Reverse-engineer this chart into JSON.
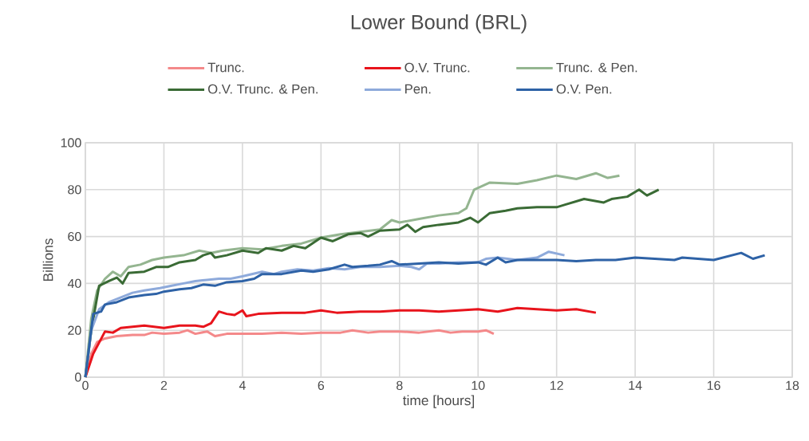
{
  "chart_data": {
    "type": "line",
    "title": "Lower Bound (BRL)",
    "xlabel": "time [hours]",
    "ylabel": "Billions",
    "xlim": [
      0,
      18
    ],
    "xticks": [
      0,
      2,
      4,
      6,
      8,
      10,
      12,
      14,
      16,
      18
    ],
    "ylim": [
      0,
      100
    ],
    "yticks": [
      0,
      20,
      40,
      60,
      80,
      100
    ],
    "grid": true,
    "legend": "top",
    "marker": "none",
    "line_style": "solid",
    "series": [
      {
        "name": "Trunc.",
        "color": "#f4898a",
        "x": [
          0,
          0.15,
          0.3,
          0.5,
          0.8,
          1.2,
          1.5,
          1.7,
          2,
          2.4,
          2.6,
          2.8,
          3.1,
          3.3,
          3.6,
          4,
          4.5,
          5,
          5.5,
          6,
          6.5,
          6.8,
          7.2,
          7.5,
          8,
          8.5,
          9,
          9.3,
          9.6,
          10,
          10.2,
          10.4
        ],
        "values": [
          0,
          10,
          15,
          16.5,
          17.5,
          18,
          18,
          19,
          18.5,
          19,
          20,
          18.5,
          19.5,
          17.5,
          18.5,
          18.5,
          18.5,
          19,
          18.5,
          19,
          19,
          20,
          19,
          19.5,
          19.5,
          19,
          20,
          19,
          19.5,
          19.5,
          20,
          18.5
        ]
      },
      {
        "name": "O.V. Trunc.",
        "color": "#e8141c",
        "x": [
          0,
          0.2,
          0.5,
          0.7,
          0.9,
          1.2,
          1.5,
          2,
          2.4,
          2.8,
          3.0,
          3.2,
          3.4,
          3.6,
          3.8,
          4,
          4.1,
          4.4,
          5,
          5.6,
          6,
          6.4,
          7,
          7.5,
          8,
          8.5,
          9,
          9.5,
          10,
          10.5,
          11,
          11.5,
          12,
          12.5,
          13
        ],
        "values": [
          0,
          10,
          19.5,
          19,
          21,
          21.5,
          22,
          21,
          22,
          22,
          21.5,
          23,
          28,
          27,
          26.5,
          28.5,
          26,
          27,
          27.5,
          27.5,
          28.5,
          27.5,
          28,
          28,
          28.5,
          28.5,
          28,
          28.5,
          29,
          28,
          29.5,
          29,
          28.5,
          29,
          27.5
        ]
      },
      {
        "name": "Trunc. & Pen.",
        "color": "#94b590",
        "x": [
          0,
          0.15,
          0.3,
          0.5,
          0.7,
          0.9,
          1.1,
          1.4,
          1.7,
          2,
          2.5,
          2.9,
          3.2,
          3.5,
          4,
          4.5,
          5,
          5.5,
          6,
          6.5,
          7,
          7.5,
          7.8,
          8,
          8.5,
          9,
          9.5,
          9.7,
          9.9,
          10.3,
          11,
          11.5,
          12,
          12.5,
          13,
          13.3,
          13.6
        ],
        "values": [
          0,
          25,
          37,
          42,
          45,
          43,
          47,
          48,
          50,
          51,
          52,
          54,
          53,
          54,
          55,
          54.5,
          56,
          57,
          59.5,
          61,
          62,
          63,
          67,
          66,
          67.5,
          69,
          70,
          72,
          80,
          83,
          82.5,
          84,
          86,
          84.5,
          87,
          85,
          86
        ]
      },
      {
        "name": "O.V. Trunc. & Pen.",
        "color": "#3a6b35",
        "x": [
          0,
          0.15,
          0.35,
          0.6,
          0.8,
          0.95,
          1.1,
          1.5,
          1.8,
          2.1,
          2.4,
          2.8,
          3.0,
          3.2,
          3.3,
          3.6,
          4,
          4.4,
          4.6,
          5,
          5.3,
          5.6,
          6,
          6.3,
          6.7,
          7,
          7.2,
          7.5,
          8,
          8.2,
          8.4,
          8.6,
          9,
          9.5,
          9.8,
          10,
          10.3,
          10.7,
          11,
          11.5,
          12,
          12.2,
          12.7,
          13.2,
          13.4,
          13.8,
          14.1,
          14.3,
          14.6
        ],
        "values": [
          0,
          20,
          39,
          41,
          42.5,
          40,
          44.5,
          45,
          47,
          47,
          49,
          50,
          52,
          53,
          51,
          52,
          54,
          53,
          55,
          54,
          56,
          55,
          59.5,
          58,
          61,
          61.5,
          60,
          62.5,
          63,
          65,
          62,
          64,
          65,
          66,
          68,
          66,
          70,
          71,
          72,
          72.5,
          72.5,
          73.5,
          76,
          74.5,
          76,
          77,
          80,
          77.5,
          80
        ]
      },
      {
        "name": "Pen.",
        "color": "#8eaadb",
        "x": [
          0,
          0.15,
          0.35,
          0.6,
          0.9,
          1.2,
          1.5,
          1.9,
          2.2,
          2.5,
          2.8,
          3.1,
          3.4,
          3.7,
          4,
          4.5,
          4.8,
          5,
          5.4,
          5.8,
          6.2,
          6.6,
          7,
          7.5,
          8,
          8.3,
          8.5,
          8.7,
          9,
          9.5,
          10,
          10.2,
          10.5,
          11,
          11.5,
          11.8,
          12.2
        ],
        "values": [
          0,
          20,
          29,
          32,
          34,
          36,
          37,
          38,
          39,
          40,
          41,
          41.5,
          42,
          42,
          43,
          45,
          44,
          45,
          46,
          45.5,
          46.5,
          46,
          47,
          47,
          47.5,
          47,
          46,
          48.5,
          48.5,
          49,
          49,
          50.5,
          51,
          50,
          51,
          53.5,
          52
        ]
      },
      {
        "name": "O.V. Pen.",
        "color": "#2e62a6",
        "x": [
          0,
          0.2,
          0.4,
          0.5,
          0.8,
          1.1,
          1.5,
          1.8,
          2,
          2.4,
          2.7,
          3,
          3.3,
          3.6,
          4,
          4.3,
          4.5,
          5,
          5.5,
          5.8,
          6.2,
          6.6,
          6.8,
          7.2,
          7.5,
          7.8,
          8,
          8.5,
          9,
          9.5,
          10,
          10.2,
          10.5,
          10.7,
          11,
          11.5,
          12,
          12.5,
          13,
          13.5,
          14,
          14.5,
          15,
          15.2,
          16,
          16.7,
          17,
          17.3
        ],
        "values": [
          0,
          27,
          28,
          31,
          32,
          34,
          35,
          35.5,
          36.5,
          37.5,
          38,
          39.5,
          39,
          40.5,
          41,
          42,
          44,
          44,
          45.5,
          45,
          46,
          48,
          47,
          47.5,
          48,
          49.5,
          48,
          48.5,
          49,
          48.5,
          49,
          48,
          51,
          49,
          50,
          50,
          50,
          49.5,
          50,
          50,
          51,
          50.5,
          50,
          51,
          50,
          53,
          50.5,
          52
        ]
      }
    ]
  }
}
